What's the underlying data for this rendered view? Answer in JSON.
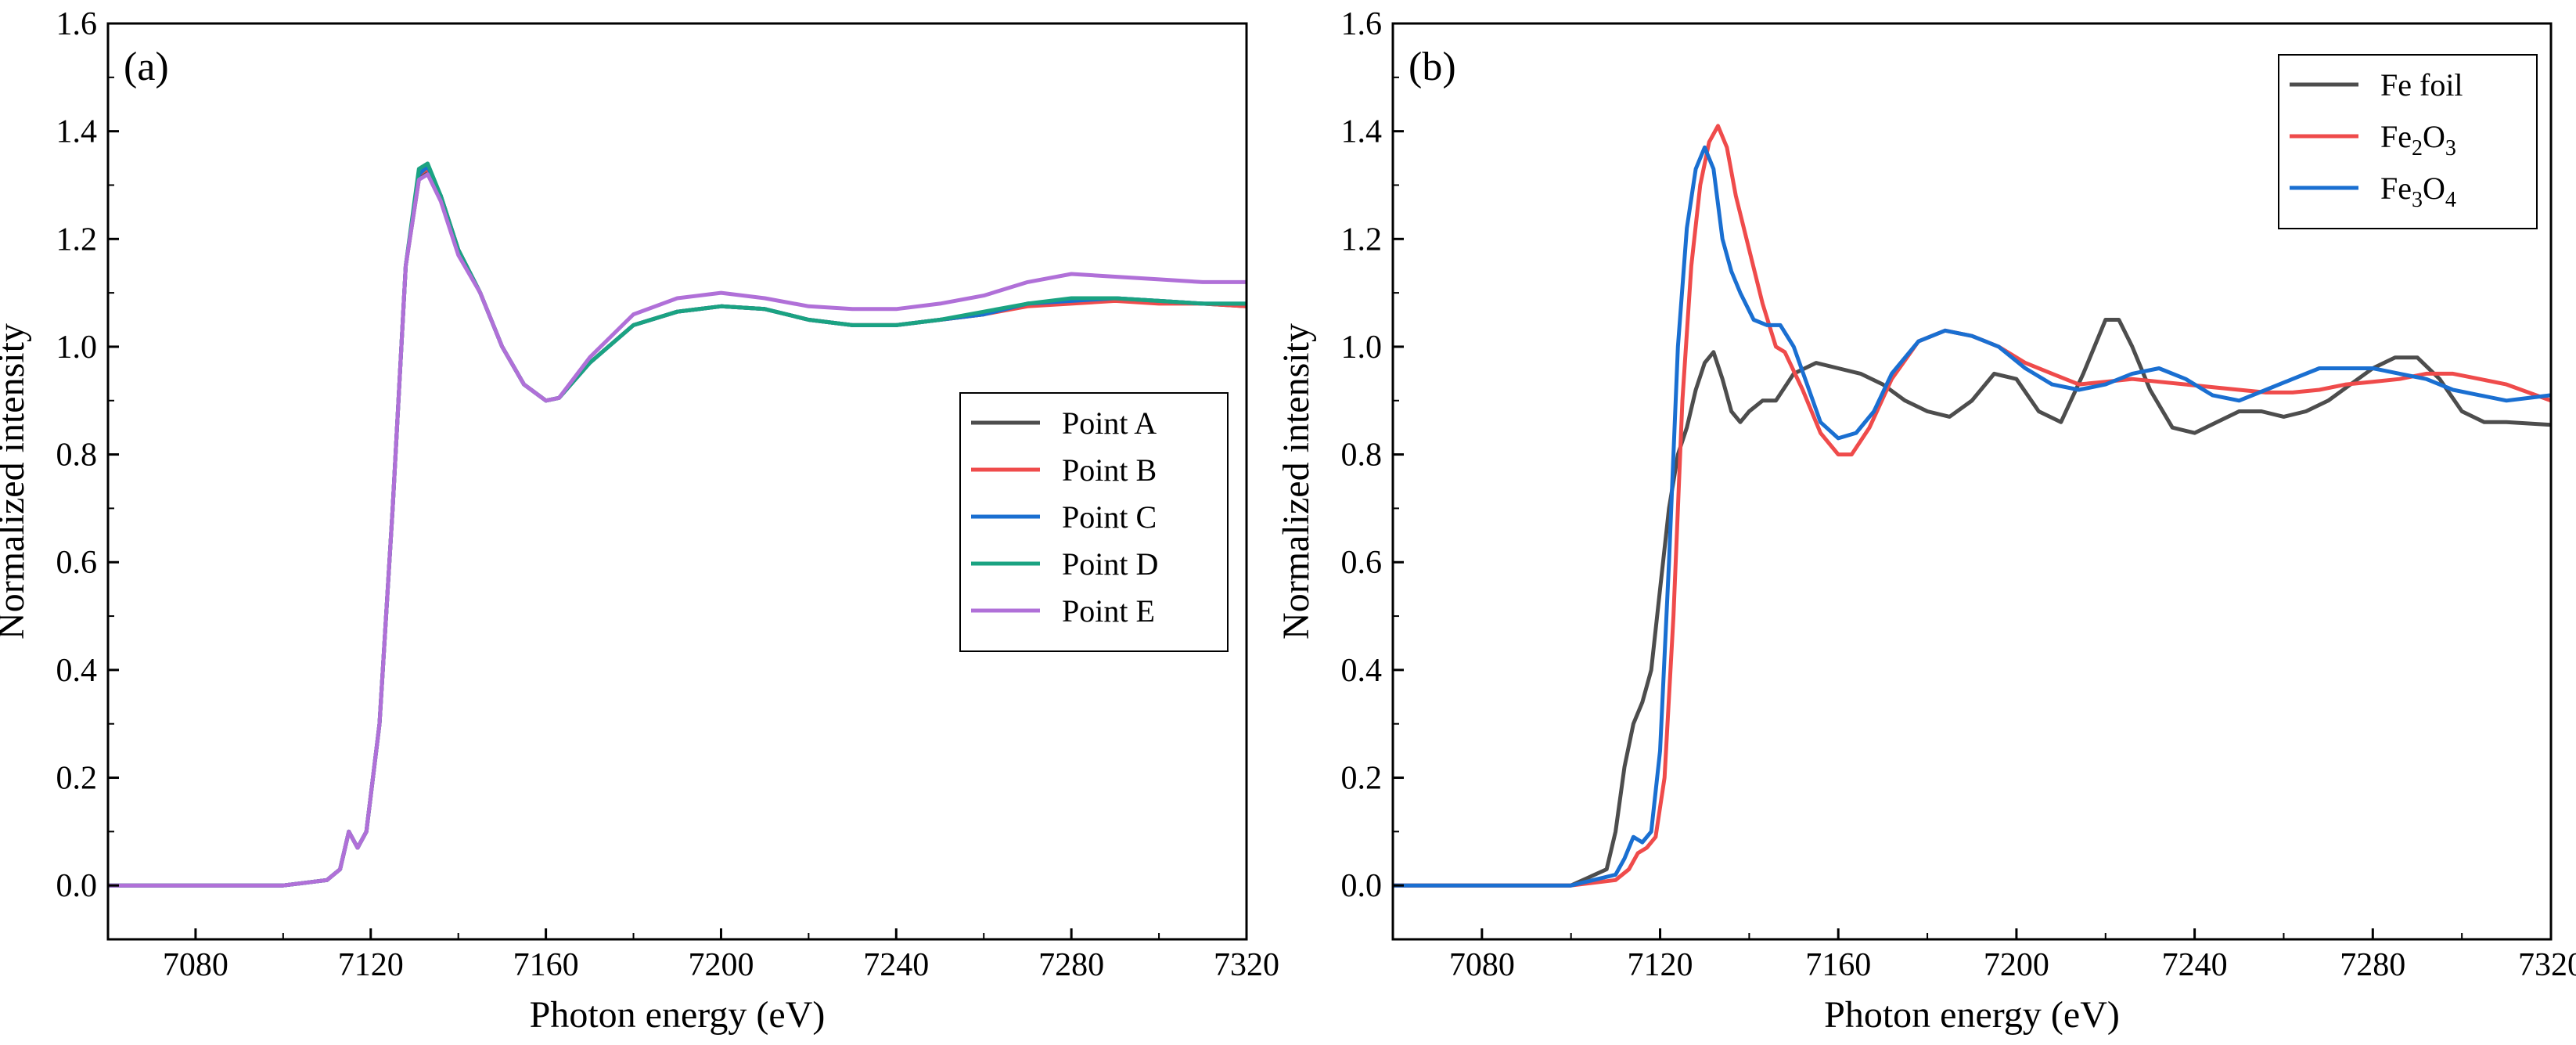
{
  "chart_data": [
    {
      "type": "line",
      "panel_label": "(a)",
      "xlabel": "Photon energy (eV)",
      "ylabel": "Normalized intensity",
      "xlim": [
        7060,
        7320
      ],
      "ylim": [
        -0.1,
        1.6
      ],
      "xticks": [
        7080,
        7120,
        7160,
        7200,
        7240,
        7280,
        7320
      ],
      "yticks": [
        0.0,
        0.2,
        0.4,
        0.6,
        0.8,
        1.0,
        1.2,
        1.4,
        1.6
      ],
      "xtick_labels": [
        "7080",
        "7120",
        "7160",
        "7200",
        "7240",
        "7280",
        "7320"
      ],
      "ytick_labels": [
        "0.0",
        "0.2",
        "0.4",
        "0.6",
        "0.8",
        "1.0",
        "1.2",
        "1.4",
        "1.6"
      ],
      "grid": false,
      "legend_position": "right-middle",
      "series": [
        {
          "name": "Point A",
          "color": "#4d4d4d",
          "x": [
            7060,
            7100,
            7110,
            7113,
            7115,
            7117,
            7119,
            7122,
            7125,
            7128,
            7131,
            7133,
            7136,
            7140,
            7145,
            7150,
            7155,
            7160,
            7163,
            7170,
            7180,
            7190,
            7200,
            7210,
            7220,
            7230,
            7240,
            7250,
            7260,
            7270,
            7280,
            7290,
            7300,
            7310,
            7320
          ],
          "y": [
            0.0,
            0.0,
            0.01,
            0.03,
            0.1,
            0.07,
            0.1,
            0.3,
            0.7,
            1.15,
            1.31,
            1.33,
            1.28,
            1.18,
            1.1,
            1.0,
            0.93,
            0.9,
            0.905,
            0.97,
            1.04,
            1.065,
            1.075,
            1.07,
            1.05,
            1.04,
            1.04,
            1.05,
            1.06,
            1.08,
            1.085,
            1.09,
            1.085,
            1.08,
            1.075
          ]
        },
        {
          "name": "Point B",
          "color": "#ef4b4b",
          "x": [
            7060,
            7100,
            7110,
            7113,
            7115,
            7117,
            7119,
            7122,
            7125,
            7128,
            7131,
            7133,
            7136,
            7140,
            7145,
            7150,
            7155,
            7160,
            7163,
            7170,
            7180,
            7190,
            7200,
            7210,
            7220,
            7230,
            7240,
            7250,
            7260,
            7270,
            7280,
            7290,
            7300,
            7310,
            7320
          ],
          "y": [
            0.0,
            0.0,
            0.01,
            0.03,
            0.1,
            0.07,
            0.1,
            0.3,
            0.7,
            1.15,
            1.32,
            1.33,
            1.28,
            1.18,
            1.1,
            1.0,
            0.93,
            0.9,
            0.905,
            0.97,
            1.04,
            1.065,
            1.075,
            1.07,
            1.05,
            1.04,
            1.04,
            1.05,
            1.06,
            1.075,
            1.08,
            1.085,
            1.08,
            1.08,
            1.075
          ]
        },
        {
          "name": "Point C",
          "color": "#1a6fd1",
          "x": [
            7060,
            7100,
            7110,
            7113,
            7115,
            7117,
            7119,
            7122,
            7125,
            7128,
            7131,
            7133,
            7136,
            7140,
            7145,
            7150,
            7155,
            7160,
            7163,
            7170,
            7180,
            7190,
            7200,
            7210,
            7220,
            7230,
            7240,
            7250,
            7260,
            7270,
            7280,
            7290,
            7300,
            7310,
            7320
          ],
          "y": [
            0.0,
            0.0,
            0.01,
            0.03,
            0.1,
            0.07,
            0.1,
            0.3,
            0.7,
            1.15,
            1.32,
            1.335,
            1.28,
            1.18,
            1.1,
            1.0,
            0.93,
            0.9,
            0.905,
            0.97,
            1.04,
            1.065,
            1.075,
            1.07,
            1.05,
            1.04,
            1.04,
            1.05,
            1.06,
            1.08,
            1.085,
            1.09,
            1.085,
            1.08,
            1.08
          ]
        },
        {
          "name": "Point D",
          "color": "#1aa382",
          "x": [
            7060,
            7100,
            7110,
            7113,
            7115,
            7117,
            7119,
            7122,
            7125,
            7128,
            7131,
            7133,
            7136,
            7140,
            7145,
            7150,
            7155,
            7160,
            7163,
            7170,
            7180,
            7190,
            7200,
            7210,
            7220,
            7230,
            7240,
            7250,
            7260,
            7270,
            7280,
            7290,
            7300,
            7310,
            7320
          ],
          "y": [
            0.0,
            0.0,
            0.01,
            0.03,
            0.1,
            0.07,
            0.1,
            0.3,
            0.7,
            1.15,
            1.33,
            1.34,
            1.28,
            1.18,
            1.1,
            1.0,
            0.93,
            0.9,
            0.905,
            0.97,
            1.04,
            1.065,
            1.075,
            1.07,
            1.05,
            1.04,
            1.04,
            1.05,
            1.065,
            1.08,
            1.09,
            1.09,
            1.085,
            1.08,
            1.08
          ]
        },
        {
          "name": "Point E",
          "color": "#b070d8",
          "x": [
            7060,
            7100,
            7110,
            7113,
            7115,
            7117,
            7119,
            7122,
            7125,
            7128,
            7131,
            7133,
            7136,
            7140,
            7145,
            7150,
            7155,
            7160,
            7163,
            7170,
            7180,
            7190,
            7200,
            7210,
            7220,
            7230,
            7240,
            7250,
            7260,
            7270,
            7280,
            7290,
            7300,
            7310,
            7320
          ],
          "y": [
            0.0,
            0.0,
            0.01,
            0.03,
            0.1,
            0.07,
            0.1,
            0.3,
            0.7,
            1.15,
            1.31,
            1.32,
            1.27,
            1.17,
            1.1,
            1.0,
            0.93,
            0.9,
            0.905,
            0.98,
            1.06,
            1.09,
            1.1,
            1.09,
            1.075,
            1.07,
            1.07,
            1.08,
            1.095,
            1.12,
            1.135,
            1.13,
            1.125,
            1.12,
            1.12
          ]
        }
      ]
    },
    {
      "type": "line",
      "panel_label": "(b)",
      "xlabel": "Photon energy (eV)",
      "ylabel": "Normalized intensity",
      "xlim": [
        7060,
        7320
      ],
      "ylim": [
        -0.1,
        1.6
      ],
      "xticks": [
        7080,
        7120,
        7160,
        7200,
        7240,
        7280,
        7320
      ],
      "yticks": [
        0.0,
        0.2,
        0.4,
        0.6,
        0.8,
        1.0,
        1.2,
        1.4,
        1.6
      ],
      "xtick_labels": [
        "7080",
        "7120",
        "7160",
        "7200",
        "7240",
        "7280",
        "7320"
      ],
      "ytick_labels": [
        "0.0",
        "0.2",
        "0.4",
        "0.6",
        "0.8",
        "1.0",
        "1.2",
        "1.4",
        "1.6"
      ],
      "grid": false,
      "legend_position": "top-right",
      "series": [
        {
          "name": "Fe foil",
          "name_main": "Fe foil",
          "name_parts": [],
          "color": "#4d4d4d",
          "x": [
            7060,
            7100,
            7108,
            7110,
            7112,
            7114,
            7116,
            7118,
            7120,
            7122,
            7124,
            7126,
            7128,
            7130,
            7132,
            7134,
            7136,
            7138,
            7140,
            7143,
            7146,
            7150,
            7155,
            7160,
            7165,
            7170,
            7175,
            7180,
            7185,
            7190,
            7195,
            7200,
            7205,
            7210,
            7215,
            7220,
            7223,
            7226,
            7230,
            7235,
            7240,
            7245,
            7250,
            7255,
            7260,
            7265,
            7270,
            7275,
            7280,
            7285,
            7290,
            7295,
            7300,
            7305,
            7310,
            7320
          ],
          "y": [
            0.0,
            0.0,
            0.03,
            0.1,
            0.22,
            0.3,
            0.34,
            0.4,
            0.55,
            0.7,
            0.8,
            0.85,
            0.92,
            0.97,
            0.99,
            0.94,
            0.88,
            0.86,
            0.88,
            0.9,
            0.9,
            0.95,
            0.97,
            0.96,
            0.95,
            0.93,
            0.9,
            0.88,
            0.87,
            0.9,
            0.95,
            0.94,
            0.88,
            0.86,
            0.95,
            1.05,
            1.05,
            1.0,
            0.92,
            0.85,
            0.84,
            0.86,
            0.88,
            0.88,
            0.87,
            0.88,
            0.9,
            0.93,
            0.96,
            0.98,
            0.98,
            0.94,
            0.88,
            0.86,
            0.86,
            0.855
          ]
        },
        {
          "name": "Fe2O3",
          "name_main": "Fe",
          "name_parts": [
            [
              "2",
              "O"
            ],
            [
              "3",
              ""
            ]
          ],
          "color": "#ef4b4b",
          "x": [
            7060,
            7100,
            7110,
            7113,
            7115,
            7117,
            7119,
            7121,
            7123,
            7125,
            7127,
            7129,
            7131,
            7133,
            7135,
            7137,
            7140,
            7143,
            7146,
            7148,
            7152,
            7156,
            7160,
            7163,
            7167,
            7172,
            7178,
            7184,
            7190,
            7196,
            7202,
            7208,
            7214,
            7220,
            7226,
            7232,
            7238,
            7244,
            7250,
            7256,
            7262,
            7268,
            7274,
            7280,
            7286,
            7292,
            7298,
            7304,
            7310,
            7320
          ],
          "y": [
            0.0,
            0.0,
            0.01,
            0.03,
            0.06,
            0.07,
            0.09,
            0.2,
            0.5,
            0.9,
            1.15,
            1.3,
            1.38,
            1.41,
            1.37,
            1.28,
            1.18,
            1.08,
            1.0,
            0.99,
            0.92,
            0.84,
            0.8,
            0.8,
            0.85,
            0.94,
            1.01,
            1.03,
            1.02,
            1.0,
            0.97,
            0.95,
            0.93,
            0.935,
            0.94,
            0.935,
            0.93,
            0.925,
            0.92,
            0.915,
            0.915,
            0.92,
            0.93,
            0.935,
            0.94,
            0.95,
            0.95,
            0.94,
            0.93,
            0.9
          ]
        },
        {
          "name": "Fe3O4",
          "name_main": "Fe",
          "name_parts": [
            [
              "3",
              "O"
            ],
            [
              "4",
              ""
            ]
          ],
          "color": "#1a6fd1",
          "x": [
            7060,
            7100,
            7110,
            7112,
            7114,
            7116,
            7118,
            7120,
            7122,
            7124,
            7126,
            7128,
            7130,
            7132,
            7134,
            7136,
            7138,
            7141,
            7144,
            7147,
            7150,
            7153,
            7156,
            7160,
            7164,
            7168,
            7172,
            7178,
            7184,
            7190,
            7196,
            7202,
            7208,
            7214,
            7220,
            7226,
            7232,
            7238,
            7244,
            7250,
            7256,
            7262,
            7268,
            7274,
            7280,
            7286,
            7292,
            7298,
            7304,
            7310,
            7320
          ],
          "y": [
            0.0,
            0.0,
            0.02,
            0.05,
            0.09,
            0.08,
            0.1,
            0.25,
            0.6,
            1.0,
            1.22,
            1.33,
            1.37,
            1.33,
            1.2,
            1.14,
            1.1,
            1.05,
            1.04,
            1.04,
            1.0,
            0.93,
            0.86,
            0.83,
            0.84,
            0.88,
            0.95,
            1.01,
            1.03,
            1.02,
            1.0,
            0.96,
            0.93,
            0.92,
            0.93,
            0.95,
            0.96,
            0.94,
            0.91,
            0.9,
            0.92,
            0.94,
            0.96,
            0.96,
            0.96,
            0.95,
            0.94,
            0.92,
            0.91,
            0.9,
            0.91
          ]
        }
      ]
    }
  ]
}
